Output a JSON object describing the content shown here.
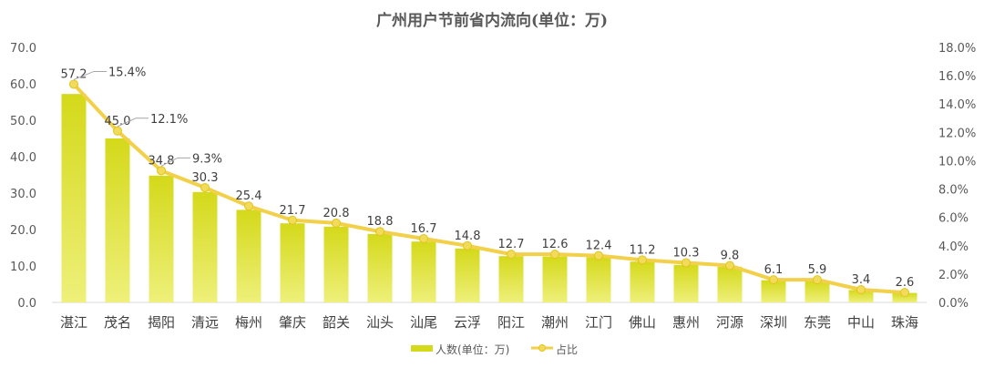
{
  "chart_data": {
    "type": "bar",
    "title": "广州用户节前省内流向(单位：万)",
    "categories": [
      "湛江",
      "茂名",
      "揭阳",
      "清远",
      "梅州",
      "肇庆",
      "韶关",
      "汕头",
      "汕尾",
      "云浮",
      "阳江",
      "潮州",
      "江门",
      "佛山",
      "惠州",
      "河源",
      "深圳",
      "东莞",
      "中山",
      "珠海"
    ],
    "series": [
      {
        "name": "人数(单位：万)",
        "type": "bar",
        "values": [
          57.2,
          45.0,
          34.8,
          30.3,
          25.4,
          21.7,
          20.8,
          18.8,
          16.7,
          14.8,
          12.7,
          12.6,
          12.4,
          11.2,
          10.3,
          9.8,
          6.1,
          5.9,
          3.4,
          2.6
        ],
        "labels": [
          "57.2",
          "45.0",
          "34.8",
          "30.3",
          "25.4",
          "21.7",
          "20.8",
          "18.8",
          "16.7",
          "14.8",
          "12.7",
          "12.6",
          "12.4",
          "11.2",
          "10.3",
          "9.8",
          "6.1",
          "5.9",
          "3.4",
          "2.6"
        ]
      },
      {
        "name": "占比",
        "type": "line",
        "axis": "right",
        "values": [
          15.4,
          12.1,
          9.3,
          8.1,
          6.8,
          5.8,
          5.6,
          5.0,
          4.5,
          4.0,
          3.4,
          3.4,
          3.3,
          3.0,
          2.8,
          2.6,
          1.6,
          1.6,
          0.9,
          0.7
        ],
        "labels": [
          "15.4%",
          "12.1%",
          "9.3%"
        ]
      }
    ],
    "ylim": [
      0,
      70
    ],
    "y2lim": [
      0,
      18
    ],
    "yticks": [
      "0.0",
      "10.0",
      "20.0",
      "30.0",
      "40.0",
      "50.0",
      "60.0",
      "70.0"
    ],
    "y2ticks": [
      "0.0%",
      "2.0%",
      "4.0%",
      "6.0%",
      "8.0%",
      "10.0%",
      "12.0%",
      "14.0%",
      "16.0%",
      "18.0%"
    ],
    "legend_position": "bottom",
    "grid": false,
    "colors": {
      "bar": "#d4d91a",
      "bar_light": "#eef07a",
      "line": "#f2d04a",
      "marker": "#f0dc5a",
      "text": "#404040",
      "axis": "#595959"
    }
  }
}
